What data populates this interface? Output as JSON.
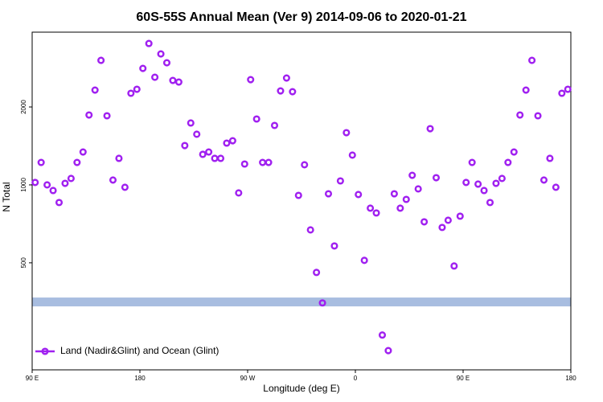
{
  "chart_data": {
    "type": "scatter",
    "title": "60S-55S Annual Mean (Ver 9)   2014-09-06 to 2020-01-21",
    "x_label": "Longitude (deg E)",
    "y_label": "N Total",
    "log_y": true,
    "grid": false,
    "legend_position": "lower left",
    "xlim": [
      90,
      540
    ],
    "xticks": [
      {
        "value": 90,
        "label": "90 E"
      },
      180,
      {
        "value": 270,
        "label": "90 W"
      },
      {
        "value": 360,
        "label": "0"
      },
      {
        "value": 450,
        "label": "90 E"
      },
      {
        "value": 540,
        "label": "180"
      }
    ],
    "ylim": [
      193,
      3890
    ],
    "yticks": [
      500,
      1000,
      2000
    ],
    "band": {
      "value": 353,
      "color": "#a8bde0"
    },
    "series": [
      {
        "name": "Land (Nadir&Glint) and Ocean (Glint)",
        "color": "#a020f0",
        "x": [
          92.5,
          97.5,
          102.5,
          107.5,
          112.5,
          117.5,
          122.5,
          127.5,
          132.5,
          137.5,
          142.5,
          147.5,
          152.5,
          157.5,
          162.5,
          167.5,
          172.5,
          177.5,
          182.5,
          187.5,
          192.5,
          197.5,
          202.5,
          207.5,
          212.5,
          217.5,
          222.5,
          227.5,
          232.5,
          237.5,
          242.5,
          247.5,
          252.5,
          257.5,
          262.5,
          267.5,
          272.5,
          277.5,
          282.5,
          287.5,
          292.5,
          297.5,
          302.5,
          307.5,
          312.5,
          317.5,
          322.5,
          327.5,
          332.5,
          337.5,
          342.5,
          347.5,
          352.5,
          357.5,
          362.5,
          367.5,
          372.5,
          377.5,
          382.5,
          387.5,
          392.5,
          397.5,
          402.5,
          407.5,
          412.5,
          417.5,
          422.5,
          427.5,
          432.5,
          437.5,
          442.5,
          447.5,
          452.5,
          457.5,
          462.5,
          467.5,
          472.5,
          477.5,
          482.5,
          487.5,
          492.5,
          497.5,
          502.5,
          507.5,
          512.5,
          517.5,
          522.5,
          527.5,
          532.5,
          537.5
        ],
        "values": [
          1022,
          1221,
          1000,
          951,
          855,
          1014,
          1059,
          1221,
          1340,
          1862,
          2324,
          3027,
          1849,
          1044,
          1266,
          979,
          2259,
          2341,
          2818,
          3517,
          2605,
          3205,
          2963,
          2532,
          2496,
          1419,
          1734,
          1569,
          1312,
          1340,
          1266,
          1266,
          1450,
          1481,
          931,
          1204,
          2550,
          1797,
          1221,
          1221,
          1697,
          2307,
          2587,
          2291,
          911,
          1196,
          670,
          459,
          350,
          924,
          581,
          1036,
          1591,
          1303,
          918,
          511,
          813,
          779,
          263,
          229,
          924,
          813,
          879,
          1089,
          965,
          720,
          1649,
          1066,
          685,
          730,
          486,
          757,
          1022,
          1221,
          1007,
          951,
          855,
          1014,
          1059,
          1221,
          1340,
          1862,
          2324,
          3027,
          1849,
          1044,
          1266,
          979,
          2259,
          2341
        ]
      }
    ]
  }
}
